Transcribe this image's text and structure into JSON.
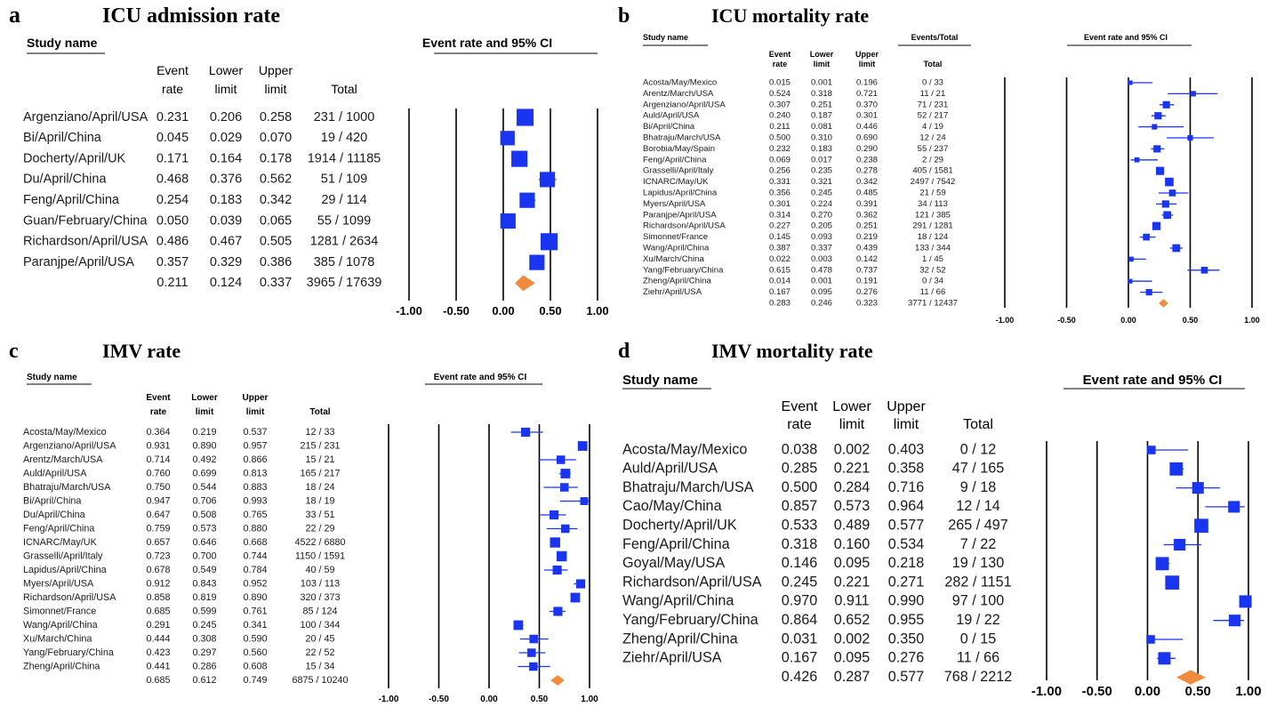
{
  "chart_data": [
    {
      "type": "forest",
      "panel_letter": "a",
      "title": "ICU admission rate",
      "study_header": "Study name",
      "plot_header": "Event rate and 95% CI",
      "col_headers": [
        [
          "Event",
          "rate"
        ],
        [
          "Lower",
          "limit"
        ],
        [
          "Upper",
          "limit"
        ],
        [
          "",
          "Total"
        ]
      ],
      "events_header": "",
      "xlim": [
        -1,
        1
      ],
      "ticks": [
        "-1.00",
        "-0.50",
        "0.00",
        "0.50",
        "1.00"
      ],
      "rows": [
        {
          "study": "Argenziano/April/USA",
          "rate": "0.231",
          "lower": "0.206",
          "upper": "0.258",
          "total": "231 / 1000",
          "weight": 1.0
        },
        {
          "study": "Bi/April/China",
          "rate": "0.045",
          "lower": "0.029",
          "upper": "0.070",
          "total": "19 / 420",
          "weight": 0.85
        },
        {
          "study": "Docherty/April/UK",
          "rate": "0.171",
          "lower": "0.164",
          "upper": "0.178",
          "total": "1914 / 11185",
          "weight": 0.95
        },
        {
          "study": "Du/April/China",
          "rate": "0.468",
          "lower": "0.376",
          "upper": "0.562",
          "total": "51 / 109",
          "weight": 0.9
        },
        {
          "study": "Feng/April/China",
          "rate": "0.254",
          "lower": "0.183",
          "upper": "0.342",
          "total": "29 / 114",
          "weight": 0.9
        },
        {
          "study": "Guan/February/China",
          "rate": "0.050",
          "lower": "0.039",
          "upper": "0.065",
          "total": "55 / 1099",
          "weight": 0.9
        },
        {
          "study": "Richardson/April/USA",
          "rate": "0.486",
          "lower": "0.467",
          "upper": "0.505",
          "total": "1281 / 2634",
          "weight": 1.0
        },
        {
          "study": "Paranjpe/April/USA",
          "rate": "0.357",
          "lower": "0.329",
          "upper": "0.386",
          "total": "385 / 1078",
          "weight": 0.9
        }
      ],
      "summary": {
        "rate": "0.211",
        "lower": "0.124",
        "upper": "0.337",
        "total": "3965 / 17639"
      }
    },
    {
      "type": "forest",
      "panel_letter": "b",
      "title": "ICU mortality rate",
      "study_header": "Study name",
      "plot_header": "Event rate and 95% CI",
      "col_headers": [
        [
          "Event",
          "rate"
        ],
        [
          "Lower",
          "limit"
        ],
        [
          "Upper",
          "limit"
        ],
        [
          "",
          "Total"
        ]
      ],
      "events_header": "Events/Total",
      "xlim": [
        -1,
        1
      ],
      "ticks": [
        "-1.00",
        "-0.50",
        "0.00",
        "0.50",
        "1.00"
      ],
      "rows": [
        {
          "study": "Acosta/May/Mexico",
          "rate": "0.015",
          "lower": "0.001",
          "upper": "0.196",
          "total": "0 / 33",
          "weight": 0.5
        },
        {
          "study": "Arentz/March/USA",
          "rate": "0.524",
          "lower": "0.318",
          "upper": "0.721",
          "total": "11 / 21",
          "weight": 0.6
        },
        {
          "study": "Argenziano/April/USA",
          "rate": "0.307",
          "lower": "0.251",
          "upper": "0.370",
          "total": "71 / 231",
          "weight": 0.8
        },
        {
          "study": "Auld/April/USA",
          "rate": "0.240",
          "lower": "0.187",
          "upper": "0.301",
          "total": "52 / 217",
          "weight": 0.8
        },
        {
          "study": "Bi/April/China",
          "rate": "0.211",
          "lower": "0.081",
          "upper": "0.446",
          "total": "4 / 19",
          "weight": 0.6
        },
        {
          "study": "Bhatraju/March/USA",
          "rate": "0.500",
          "lower": "0.310",
          "upper": "0.690",
          "total": "12 / 24",
          "weight": 0.6
        },
        {
          "study": "Borobia/May/Spain",
          "rate": "0.232",
          "lower": "0.183",
          "upper": "0.290",
          "total": "55 / 237",
          "weight": 0.8
        },
        {
          "study": "Feng/April/China",
          "rate": "0.069",
          "lower": "0.017",
          "upper": "0.238",
          "total": "2 / 29",
          "weight": 0.55
        },
        {
          "study": "Grasselli/April/Italy",
          "rate": "0.256",
          "lower": "0.235",
          "upper": "0.278",
          "total": "405 / 1581",
          "weight": 0.9
        },
        {
          "study": "ICNARC/May/UK",
          "rate": "0.331",
          "lower": "0.321",
          "upper": "0.342",
          "total": "2497 / 7542",
          "weight": 0.95
        },
        {
          "study": "Lapidus/April/China",
          "rate": "0.356",
          "lower": "0.245",
          "upper": "0.485",
          "total": "21 / 59",
          "weight": 0.75
        },
        {
          "study": "Myers/April/USA",
          "rate": "0.301",
          "lower": "0.224",
          "upper": "0.391",
          "total": "34 / 113",
          "weight": 0.8
        },
        {
          "study": "Paranjpe/April/USA",
          "rate": "0.314",
          "lower": "0.270",
          "upper": "0.362",
          "total": "121 / 385",
          "weight": 0.85
        },
        {
          "study": "Richardson/April/USA",
          "rate": "0.227",
          "lower": "0.205",
          "upper": "0.251",
          "total": "291 / 1281",
          "weight": 0.9
        },
        {
          "study": "Simonnet/France",
          "rate": "0.145",
          "lower": "0.093",
          "upper": "0.219",
          "total": "18 / 124",
          "weight": 0.75
        },
        {
          "study": "Wang/April/China",
          "rate": "0.387",
          "lower": "0.337",
          "upper": "0.439",
          "total": "133 / 344",
          "weight": 0.85
        },
        {
          "study": "Xu/March/China",
          "rate": "0.022",
          "lower": "0.003",
          "upper": "0.142",
          "total": "1 / 45",
          "weight": 0.55
        },
        {
          "study": "Yang/February/China",
          "rate": "0.615",
          "lower": "0.478",
          "upper": "0.737",
          "total": "32 / 52",
          "weight": 0.75
        },
        {
          "study": "Zheng/April/China",
          "rate": "0.014",
          "lower": "0.001",
          "upper": "0.191",
          "total": "0 / 34",
          "weight": 0.5
        },
        {
          "study": "Ziehr/April/USA",
          "rate": "0.167",
          "lower": "0.095",
          "upper": "0.276",
          "total": "11 / 66",
          "weight": 0.7
        }
      ],
      "summary": {
        "rate": "0.283",
        "lower": "0.246",
        "upper": "0.323",
        "total": "3771 / 12437"
      }
    },
    {
      "type": "forest",
      "panel_letter": "c",
      "title": "IMV rate",
      "study_header": "Study name",
      "plot_header": "Event rate and 95% CI",
      "col_headers": [
        [
          "Event",
          "rate"
        ],
        [
          "Lower",
          "limit"
        ],
        [
          "Upper",
          "limit"
        ],
        [
          "",
          "Total"
        ]
      ],
      "events_header": "",
      "xlim": [
        -1,
        1
      ],
      "ticks": [
        "-1.00",
        "-0.50",
        "0.00",
        "0.50",
        "1.00"
      ],
      "rows": [
        {
          "study": "Acosta/May/Mexico",
          "rate": "0.364",
          "lower": "0.219",
          "upper": "0.537",
          "total": "12 / 33",
          "weight": 0.8
        },
        {
          "study": "Argenziano/April/USA",
          "rate": "0.931",
          "lower": "0.890",
          "upper": "0.957",
          "total": "215 / 231",
          "weight": 0.85
        },
        {
          "study": "Arentz/March/USA",
          "rate": "0.714",
          "lower": "0.492",
          "upper": "0.866",
          "total": "15 / 21",
          "weight": 0.75
        },
        {
          "study": "Auld/April/USA",
          "rate": "0.760",
          "lower": "0.699",
          "upper": "0.813",
          "total": "165 / 217",
          "weight": 0.85
        },
        {
          "study": "Bhatraju/March/USA",
          "rate": "0.750",
          "lower": "0.544",
          "upper": "0.883",
          "total": "18 / 24",
          "weight": 0.75
        },
        {
          "study": "Bi/April/China",
          "rate": "0.947",
          "lower": "0.706",
          "upper": "0.993",
          "total": "18 / 19",
          "weight": 0.7
        },
        {
          "study": "Du/April/China",
          "rate": "0.647",
          "lower": "0.508",
          "upper": "0.765",
          "total": "33 / 51",
          "weight": 0.8
        },
        {
          "study": "Feng/April/China",
          "rate": "0.759",
          "lower": "0.573",
          "upper": "0.880",
          "total": "22 / 29",
          "weight": 0.75
        },
        {
          "study": "ICNARC/May/UK",
          "rate": "0.657",
          "lower": "0.646",
          "upper": "0.668",
          "total": "4522 / 6880",
          "weight": 0.9
        },
        {
          "study": "Grasselli/April/Italy",
          "rate": "0.723",
          "lower": "0.700",
          "upper": "0.744",
          "total": "1150 / 1591",
          "weight": 0.9
        },
        {
          "study": "Lapidus/April/China",
          "rate": "0.678",
          "lower": "0.549",
          "upper": "0.784",
          "total": "40 / 59",
          "weight": 0.8
        },
        {
          "study": "Myers/April/USA",
          "rate": "0.912",
          "lower": "0.843",
          "upper": "0.952",
          "total": "103 / 113",
          "weight": 0.8
        },
        {
          "study": "Richardson/April/USA",
          "rate": "0.858",
          "lower": "0.819",
          "upper": "0.890",
          "total": "320 / 373",
          "weight": 0.85
        },
        {
          "study": "Simonnet/France",
          "rate": "0.685",
          "lower": "0.599",
          "upper": "0.761",
          "total": "85 / 124",
          "weight": 0.8
        },
        {
          "study": "Wang/April/China",
          "rate": "0.291",
          "lower": "0.245",
          "upper": "0.341",
          "total": "100 / 344",
          "weight": 0.85
        },
        {
          "study": "Xu/March/China",
          "rate": "0.444",
          "lower": "0.308",
          "upper": "0.590",
          "total": "20 / 45",
          "weight": 0.75
        },
        {
          "study": "Yang/February/China",
          "rate": "0.423",
          "lower": "0.297",
          "upper": "0.560",
          "total": "22 / 52",
          "weight": 0.75
        },
        {
          "study": "Zheng/April/China",
          "rate": "0.441",
          "lower": "0.286",
          "upper": "0.608",
          "total": "15 / 34",
          "weight": 0.75
        }
      ],
      "summary": {
        "rate": "0.685",
        "lower": "0.612",
        "upper": "0.749",
        "total": "6875 / 10240"
      }
    },
    {
      "type": "forest",
      "panel_letter": "d",
      "title": "IMV mortality rate",
      "study_header": "Study name",
      "plot_header": "Event rate and 95% CI",
      "col_headers": [
        [
          "Event",
          "rate"
        ],
        [
          "Lower",
          "limit"
        ],
        [
          "Upper",
          "limit"
        ],
        [
          "",
          "Total"
        ]
      ],
      "events_header": "",
      "xlim": [
        -1,
        1
      ],
      "ticks": [
        "-1.00",
        "-0.50",
        "0.00",
        "0.50",
        "1.00"
      ],
      "rows": [
        {
          "study": "Acosta/May/Mexico",
          "rate": "0.038",
          "lower": "0.002",
          "upper": "0.403",
          "total": "0 / 12",
          "weight": 0.55
        },
        {
          "study": "Auld/April/USA",
          "rate": "0.285",
          "lower": "0.221",
          "upper": "0.358",
          "total": "47 / 165",
          "weight": 0.85
        },
        {
          "study": "Bhatraju/March/USA",
          "rate": "0.500",
          "lower": "0.284",
          "upper": "0.716",
          "total": "9 / 18",
          "weight": 0.75
        },
        {
          "study": "Cao/May/China",
          "rate": "0.857",
          "lower": "0.573",
          "upper": "0.964",
          "total": "12 / 14",
          "weight": 0.75
        },
        {
          "study": "Docherty/April/UK",
          "rate": "0.533",
          "lower": "0.489",
          "upper": "0.577",
          "total": "265 / 497",
          "weight": 0.9
        },
        {
          "study": "Feng/April/China",
          "rate": "0.318",
          "lower": "0.160",
          "upper": "0.534",
          "total": "7 / 22",
          "weight": 0.75
        },
        {
          "study": "Goyal/May/USA",
          "rate": "0.146",
          "lower": "0.095",
          "upper": "0.218",
          "total": "19 / 130",
          "weight": 0.85
        },
        {
          "study": "Richardson/April/USA",
          "rate": "0.245",
          "lower": "0.221",
          "upper": "0.271",
          "total": "282 / 1151",
          "weight": 0.9
        },
        {
          "study": "Wang/April/China",
          "rate": "0.970",
          "lower": "0.911",
          "upper": "0.990",
          "total": "97 / 100",
          "weight": 0.8
        },
        {
          "study": "Yang/February/China",
          "rate": "0.864",
          "lower": "0.652",
          "upper": "0.955",
          "total": "19 / 22",
          "weight": 0.75
        },
        {
          "study": "Zheng/April/China",
          "rate": "0.031",
          "lower": "0.002",
          "upper": "0.350",
          "total": "0 / 15",
          "weight": 0.55
        },
        {
          "study": "Ziehr/April/USA",
          "rate": "0.167",
          "lower": "0.095",
          "upper": "0.276",
          "total": "11 / 66",
          "weight": 0.8
        }
      ],
      "summary": {
        "rate": "0.426",
        "lower": "0.287",
        "upper": "0.577",
        "total": "768 / 2212"
      }
    }
  ],
  "colors": {
    "marker": "#1a35f0",
    "summary": "#f08a3c",
    "axis": "#000000",
    "text": "#1a1a1a"
  }
}
